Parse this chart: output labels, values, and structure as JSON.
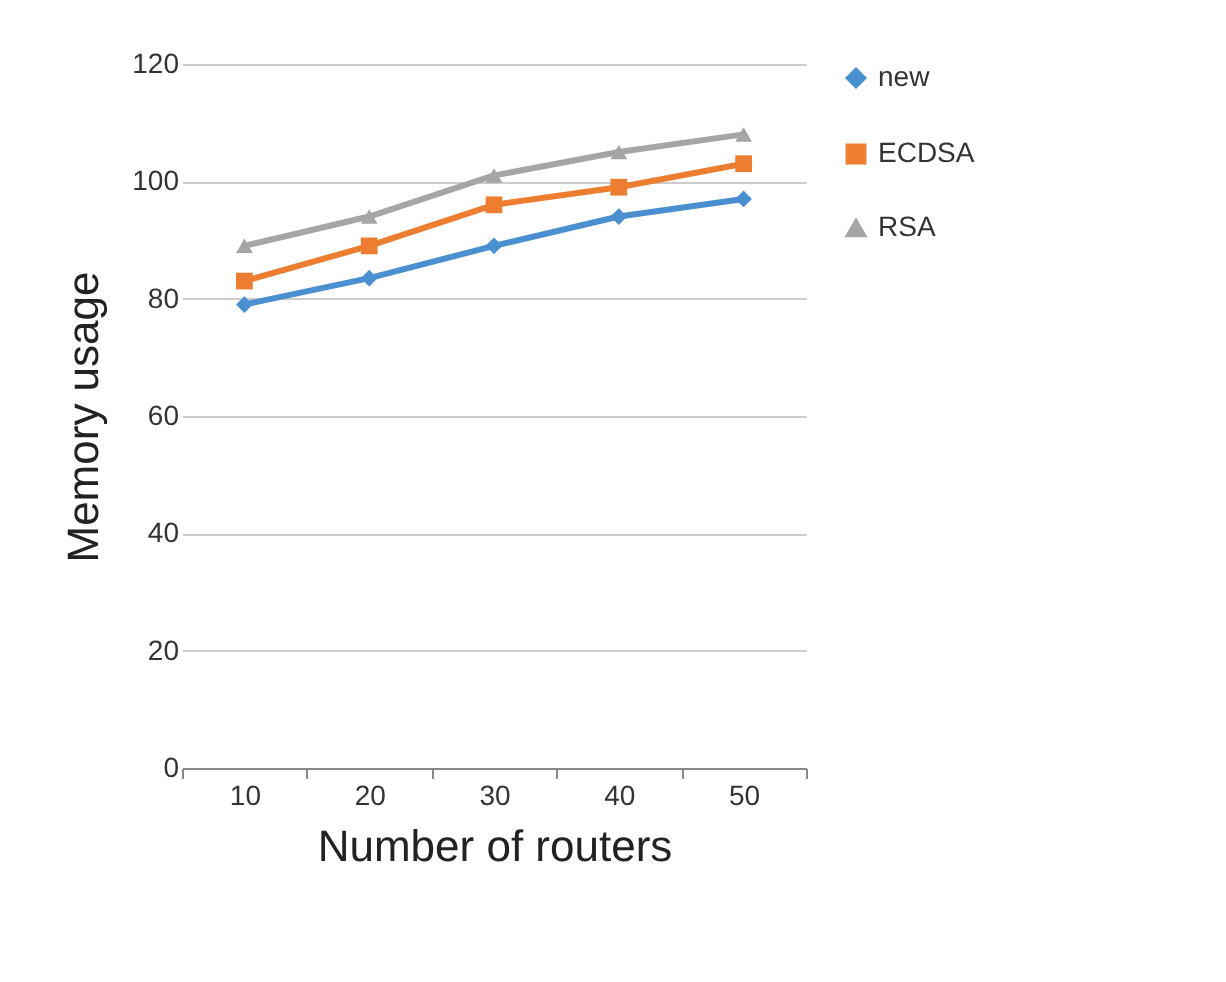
{
  "chart_data": {
    "type": "line",
    "xlabel": "Number of routers",
    "ylabel": "Memory usage",
    "categories": [
      "10",
      "20",
      "30",
      "40",
      "50"
    ],
    "series": [
      {
        "name": "new",
        "color": "#4a8fd0",
        "marker": "diamond",
        "values": [
          79,
          83.5,
          89,
          94,
          97
        ]
      },
      {
        "name": "ECDSA",
        "color": "#ed7d31",
        "marker": "square",
        "values": [
          83,
          89,
          96,
          99,
          103
        ]
      },
      {
        "name": "RSA",
        "color": "#a5a5a5",
        "marker": "triangle",
        "values": [
          89,
          94,
          101,
          105,
          108
        ]
      }
    ],
    "ylim": [
      0,
      120
    ],
    "yticks": [
      0,
      20,
      40,
      60,
      80,
      100,
      120
    ],
    "grid": "y",
    "legend": "right"
  }
}
